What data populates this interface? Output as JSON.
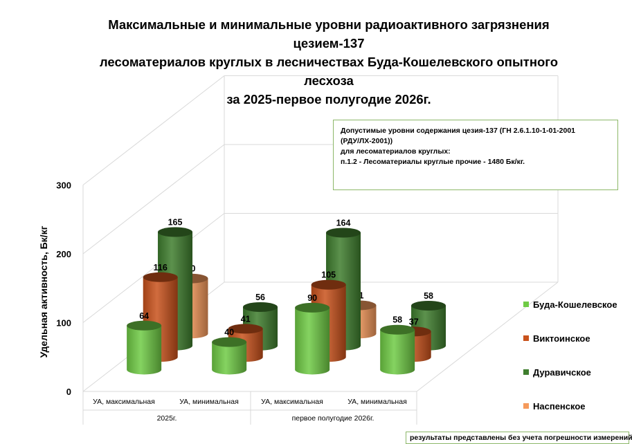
{
  "chart_data": {
    "type": "bar",
    "title_lines": [
      "Максимальные и минимальные уровни радиоактивного загрязнения",
      "цезием-137",
      "лесоматериалов круглых в лесничествах Буда-Кошелевского опытного",
      "лесхоза",
      "за 2025-первое полугодие 2026г."
    ],
    "ylabel": "Удельная активность, Бк/кг",
    "ylim": [
      0,
      300
    ],
    "yticks": [
      "0",
      "100",
      "200",
      "300"
    ],
    "groups": [
      "2025г.",
      "первое полугодие 2026г."
    ],
    "categories": [
      "УА, максимальная",
      "УА, минимальная",
      "УА, максимальная",
      "УА, минимальная"
    ],
    "series": [
      {
        "name": "Буда-Кошелевское",
        "color": "#6fcb45",
        "values": [
          64,
          40,
          90,
          58
        ]
      },
      {
        "name": "Виктоинское",
        "color": "#c9521c",
        "values": [
          116,
          41,
          105,
          37
        ]
      },
      {
        "name": "Дуравичское",
        "color": "#3f7e2e",
        "values": [
          165,
          56,
          164,
          58
        ]
      },
      {
        "name": "Наспенское",
        "color": "#f59a5c",
        "values": [
          80,
          null,
          41,
          null
        ]
      }
    ],
    "legend_position": "right",
    "grid": true
  },
  "norm_box": {
    "lines": [
      "Допустимые уровни содержания цезия-137 (ГН 2.6.1.10-1-01-2001",
      "(РДУ/ЛХ-2001))",
      "для лесоматериалов круглых:",
      "п.1.2 - Лесоматериалы круглые прочие - 1480 Бк/кг."
    ]
  },
  "footnote": "результаты представлены без учета погрешности измерений"
}
